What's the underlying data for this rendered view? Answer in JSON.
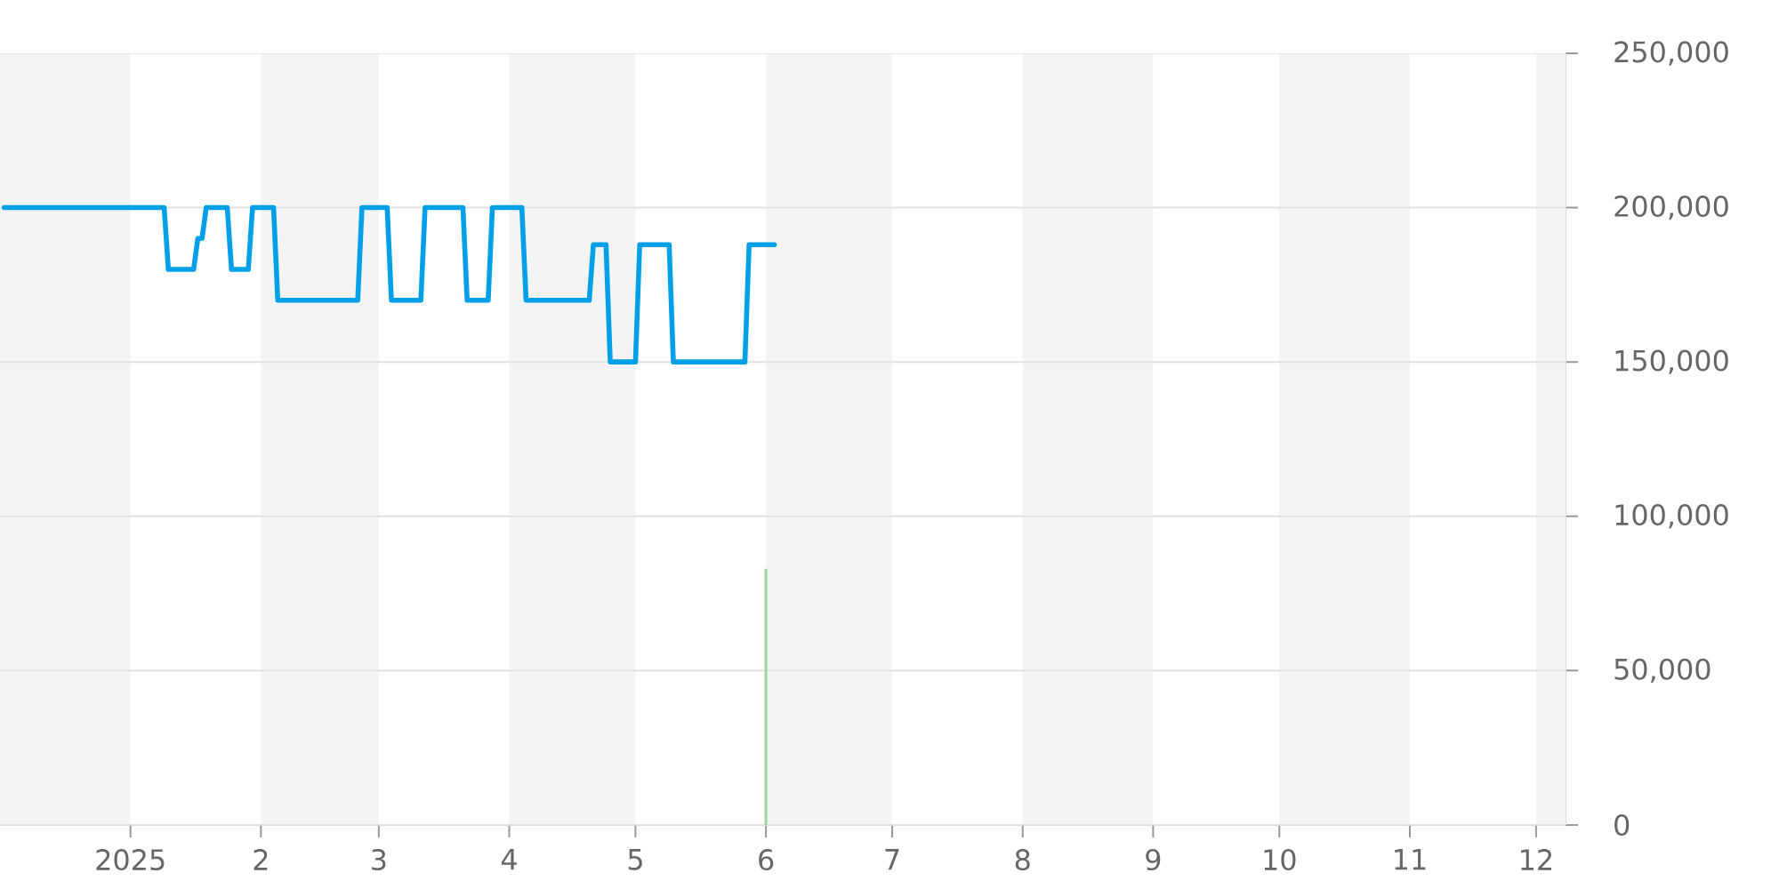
{
  "chart_data": {
    "type": "line",
    "xlim": [
      "2024-12-01",
      "2025-12-08"
    ],
    "ylim": [
      0,
      250000
    ],
    "xticks": [
      {
        "value": "2025-01-01",
        "label": "2025"
      },
      {
        "value": "2025-02-01",
        "label": "2"
      },
      {
        "value": "2025-03-01",
        "label": "3"
      },
      {
        "value": "2025-04-01",
        "label": "4"
      },
      {
        "value": "2025-05-01",
        "label": "5"
      },
      {
        "value": "2025-06-01",
        "label": "6"
      },
      {
        "value": "2025-07-01",
        "label": "7"
      },
      {
        "value": "2025-08-01",
        "label": "8"
      },
      {
        "value": "2025-09-01",
        "label": "9"
      },
      {
        "value": "2025-10-01",
        "label": "10"
      },
      {
        "value": "2025-11-01",
        "label": "11"
      },
      {
        "value": "2025-12-01",
        "label": "12"
      }
    ],
    "yticks": [
      0,
      {
        "value": 50000,
        "label": "50,000"
      },
      {
        "value": 100000,
        "label": "100,000"
      },
      {
        "value": 150000,
        "label": "150,000"
      },
      {
        "value": 200000,
        "label": "200,000"
      },
      {
        "value": 250000,
        "label": "250,000"
      }
    ],
    "grid": "y",
    "bands": [
      {
        "axis": "x",
        "from": "2024-12-01",
        "to": "2025-01-01",
        "color": "#f4f4f4"
      },
      {
        "axis": "x",
        "from": "2025-02-01",
        "to": "2025-03-01",
        "color": "#f4f4f4"
      },
      {
        "axis": "x",
        "from": "2025-04-01",
        "to": "2025-05-01",
        "color": "#f4f4f4"
      },
      {
        "axis": "x",
        "from": "2025-06-01",
        "to": "2025-07-01",
        "color": "#f4f4f4"
      },
      {
        "axis": "x",
        "from": "2025-08-01",
        "to": "2025-09-01",
        "color": "#f4f4f4"
      },
      {
        "axis": "x",
        "from": "2025-10-01",
        "to": "2025-11-01",
        "color": "#f4f4f4"
      },
      {
        "axis": "x",
        "from": "2025-12-01",
        "to": "2025-12-08",
        "color": "#f4f4f4"
      }
    ],
    "series": [
      {
        "color": "#00a0e9",
        "x": [
          "2024-12-02",
          "2025-01-09",
          "2025-01-10",
          "2025-01-16",
          "2025-01-17",
          "2025-01-18",
          "2025-01-19",
          "2025-01-24",
          "2025-01-25",
          "2025-01-29",
          "2025-01-30",
          "2025-02-04",
          "2025-02-05",
          "2025-02-24",
          "2025-02-25",
          "2025-03-03",
          "2025-03-04",
          "2025-03-11",
          "2025-03-12",
          "2025-03-21",
          "2025-03-22",
          "2025-03-27",
          "2025-03-28",
          "2025-04-04",
          "2025-04-05",
          "2025-04-20",
          "2025-04-21",
          "2025-04-24",
          "2025-04-25",
          "2025-05-01",
          "2025-05-02",
          "2025-05-09",
          "2025-05-10",
          "2025-05-27",
          "2025-05-28",
          "2025-06-03"
        ],
        "values": [
          200000,
          200000,
          180000,
          180000,
          190000,
          190000,
          200000,
          200000,
          180000,
          180000,
          200000,
          200000,
          170000,
          170000,
          200000,
          200000,
          170000,
          170000,
          200000,
          200000,
          170000,
          170000,
          200000,
          200000,
          170000,
          170000,
          188000,
          188000,
          150000,
          150000,
          188000,
          188000,
          150000,
          150000,
          188000,
          188000
        ]
      },
      {
        "type": "bar",
        "color": "#9fd6a6",
        "x": [
          "2025-06-01"
        ],
        "values": [
          83000
        ]
      }
    ]
  }
}
